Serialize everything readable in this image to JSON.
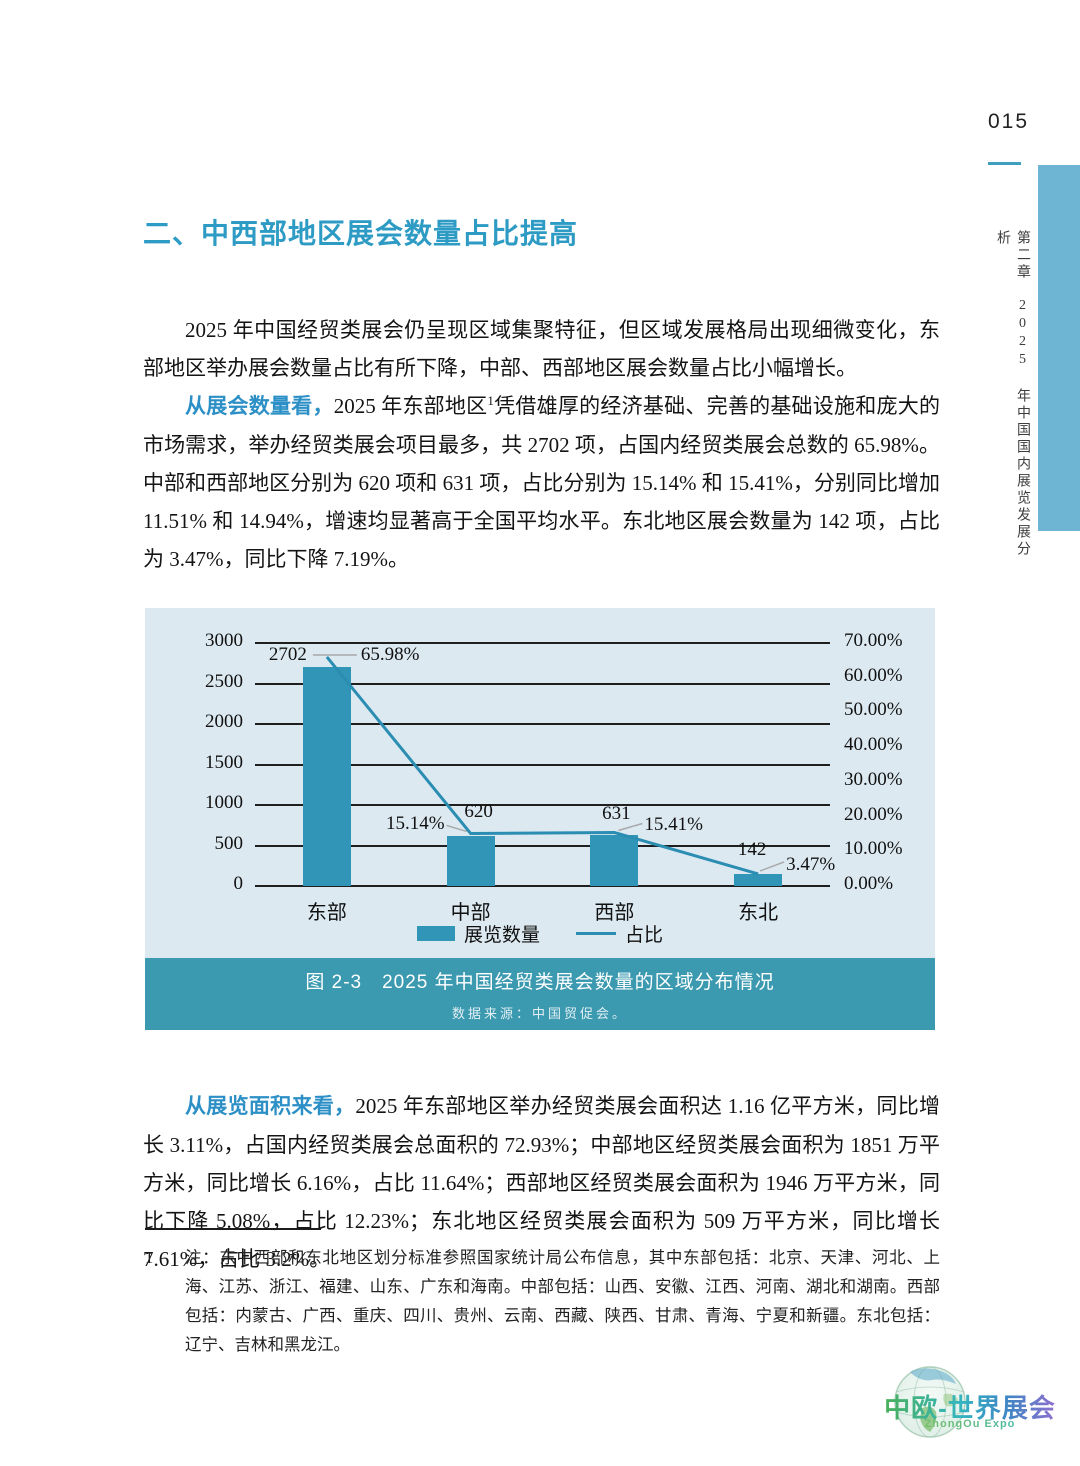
{
  "page": {
    "number": "015"
  },
  "sidebar": {
    "text": "第二章　2025 年中国国内展览发展分析",
    "bar_color": "#6db5d2"
  },
  "heading": {
    "text": "二、中西部地区展会数量占比提高",
    "color": "#2d9bc4"
  },
  "paragraphs": {
    "p1": "2025 年中国经贸类展会仍呈现区域集聚特征，但区域发展格局出现细微变化，东部地区举办展会数量占比有所下降，中部、西部地区展会数量占比小幅增长。",
    "p2": {
      "lead": "从展会数量看，",
      "before_sup": "2025 年东部地区",
      "sup": "1",
      "rest": "凭借雄厚的经济基础、完善的基础设施和庞大的市场需求，举办经贸类展会项目最多，共 2702 项，占国内经贸类展会总数的 65.98%。中部和西部地区分别为 620 项和 631 项，占比分别为 15.14% 和 15.41%，分别同比增加 11.51% 和 14.94%，增速均显著高于全国平均水平。东北地区展会数量为 142 项，占比为 3.47%，同比下降 7.19%。"
    },
    "p3": {
      "lead": "从展览面积来看，",
      "rest": "2025 年东部地区举办经贸类展会面积达 1.16 亿平方米，同比增长 3.11%，占国内经贸类展会总面积的 72.93%；中部地区经贸类展会面积为 1851 万平方米，同比增长 6.16%，占比 11.64%；西部地区经贸类展会面积为 1946 万平方米，同比下降 5.08%，占比 12.23%；东北地区经贸类展会面积为 509 万平方米，同比增长 7.61%，占比 3.2%。"
    }
  },
  "chart_data": {
    "type": "bar",
    "categories": [
      "东部",
      "中部",
      "西部",
      "东北"
    ],
    "series": [
      {
        "name": "展览数量",
        "type": "bar",
        "axis": "left",
        "values": [
          2702,
          620,
          631,
          142
        ]
      },
      {
        "name": "占比",
        "type": "line",
        "axis": "right",
        "unit": "%",
        "values": [
          65.98,
          15.14,
          15.41,
          3.47
        ]
      }
    ],
    "value_labels": [
      "2702",
      "620",
      "631",
      "142"
    ],
    "pct_labels": [
      "65.98%",
      "15.14%",
      "15.41%",
      "3.47%"
    ],
    "left_axis": {
      "min": 0,
      "max": 3000,
      "ticks": [
        "3000",
        "2500",
        "2000",
        "1500",
        "1000",
        "500",
        "0"
      ]
    },
    "right_axis": {
      "min": 0,
      "max": 70,
      "ticks": [
        "70.00%",
        "60.00%",
        "50.00%",
        "40.00%",
        "30.00%",
        "20.00%",
        "10.00%",
        "0.00%"
      ]
    },
    "legend": [
      "展览数量",
      "占比"
    ],
    "grid": "on",
    "legend_position": "bottom",
    "caption": "图 2-3　2025 年中国经贸类展会数量的区域分布情况",
    "source": "数据来源：中国贸促会。",
    "colors": {
      "bar": "#3095b6",
      "line": "#2a8db1",
      "plot_bg": "#dce9f1",
      "caption_bg": "#3b99b0",
      "grid": "#1f1f1f",
      "leader": "#a8a8a8"
    }
  },
  "footnote": {
    "marker": "1",
    "text": "注：东中西部和东北地区划分标准参照国家统计局公布信息，其中东部包括：北京、天津、河北、上海、江苏、浙江、福建、山东、广东和海南。中部包括：山西、安徽、江西、河南、湖北和湖南。西部包括：内蒙古、广西、重庆、四川、贵州、云南、西藏、陕西、甘肃、青海、宁夏和新疆。东北包括：辽宁、吉林和黑龙江。"
  },
  "logo": {
    "title": "中欧-世界展会",
    "subtitle": "ZhongOu Expo"
  }
}
